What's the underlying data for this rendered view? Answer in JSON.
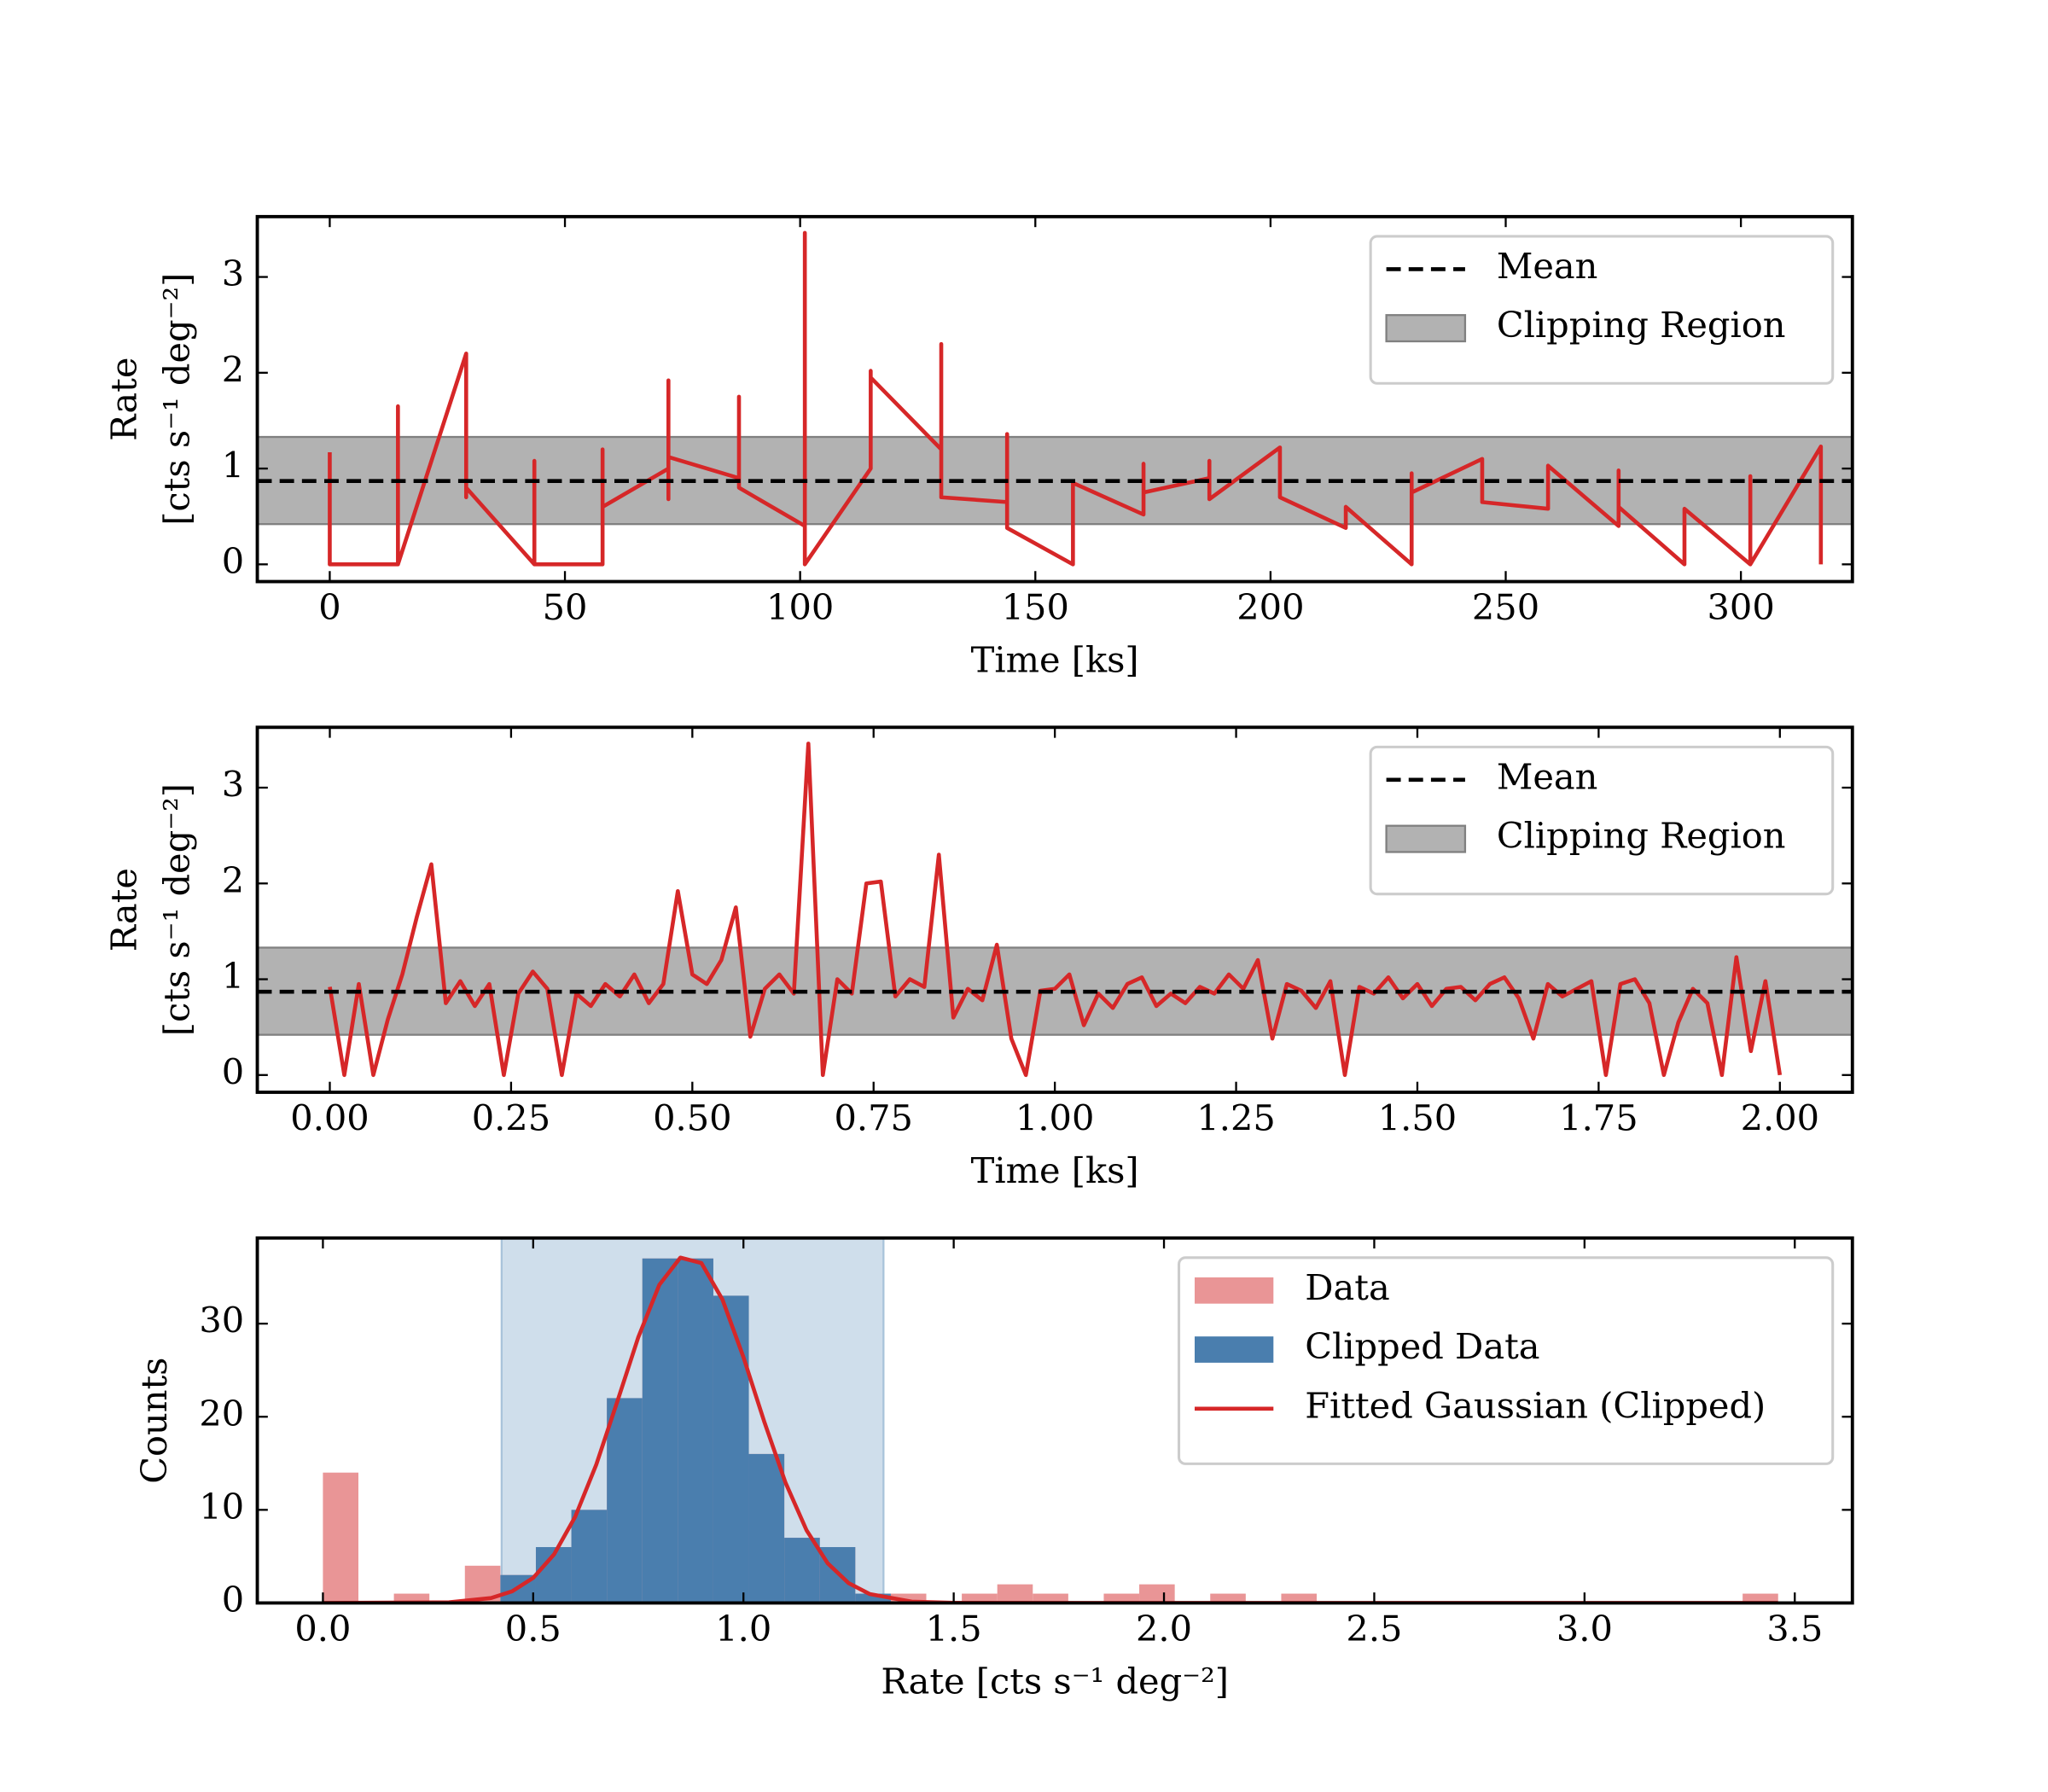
{
  "chart_data": [
    {
      "type": "line",
      "xlabel": "Time [ks]",
      "ylabel": [
        "Rate",
        "[cts s⁻¹ deg⁻²]"
      ],
      "xlim": [
        -15.4,
        323.7
      ],
      "ylim": [
        -0.18,
        3.63
      ],
      "xticks": [
        0,
        50,
        100,
        150,
        200,
        250,
        300
      ],
      "yticks": [
        0,
        1,
        2,
        3
      ],
      "color": "#d62728",
      "x": [
        0,
        0,
        14.5,
        14.5,
        14.5,
        29,
        29,
        29,
        43.5,
        43.5,
        43.5,
        58,
        58,
        58,
        72,
        72,
        72,
        72,
        87,
        87,
        87,
        101,
        101,
        101,
        115,
        115,
        115,
        130,
        130,
        130,
        144,
        144,
        144,
        158,
        158,
        173,
        173,
        173,
        187,
        187,
        187,
        202,
        202,
        216,
        216,
        230,
        230,
        230,
        245,
        245,
        259,
        259,
        274,
        274,
        274,
        288,
        288,
        302,
        302,
        302,
        317,
        317
      ],
      "values": [
        1.17,
        0,
        0,
        1.65,
        0,
        2.2,
        0.7,
        0.8,
        0,
        1.08,
        0,
        0,
        1.2,
        0.6,
        1.0,
        1.92,
        0.68,
        1.12,
        0.9,
        1.75,
        0.8,
        0.4,
        3.46,
        0,
        1.0,
        2.02,
        1.95,
        1.2,
        2.3,
        0.7,
        0.65,
        1.36,
        0.38,
        0,
        0.85,
        0.52,
        1.05,
        0.75,
        0.9,
        1.08,
        0.68,
        1.22,
        0.7,
        0.38,
        0.6,
        0,
        0.95,
        0.75,
        1.1,
        0.65,
        0.58,
        1.03,
        0.4,
        0.98,
        0.6,
        0,
        0.58,
        0,
        0.92,
        0,
        1.23,
        0
      ],
      "mean": {
        "name": "Mean",
        "value": 0.87,
        "color": "#000000"
      },
      "clip_region": {
        "name": "Clipping Region",
        "range": [
          0.42,
          1.33
        ],
        "color": "#b2b2b2"
      }
    },
    {
      "type": "line",
      "xlabel": "Time [ks]",
      "ylabel": [
        "Rate",
        "[cts s⁻¹ deg⁻²]"
      ],
      "xlim": [
        -0.1,
        2.1
      ],
      "ylim": [
        -0.18,
        3.63
      ],
      "xticks": [
        {
          "value": 0,
          "label": "0.00"
        },
        0.25,
        {
          "value": 0.5,
          "label": "0.50"
        },
        0.75,
        {
          "value": 1,
          "label": "1.00"
        },
        1.25,
        {
          "value": 1.5,
          "label": "1.50"
        },
        1.75,
        {
          "value": 2,
          "label": "2.00"
        }
      ],
      "yticks": [
        0,
        1,
        2,
        3
      ],
      "color": "#d62728",
      "x": [
        0,
        0.02,
        0.04,
        0.06,
        0.08,
        0.1,
        0.12,
        0.14,
        0.16,
        0.18,
        0.2,
        0.22,
        0.24,
        0.26,
        0.28,
        0.3,
        0.32,
        0.34,
        0.36,
        0.38,
        0.4,
        0.42,
        0.44,
        0.46,
        0.48,
        0.5,
        0.52,
        0.54,
        0.56,
        0.58,
        0.6,
        0.62,
        0.64,
        0.66,
        0.68,
        0.7,
        0.72,
        0.74,
        0.76,
        0.78,
        0.8,
        0.82,
        0.84,
        0.86,
        0.88,
        0.9,
        0.92,
        0.94,
        0.96,
        0.98,
        1.0,
        1.02,
        1.04,
        1.06,
        1.08,
        1.1,
        1.12,
        1.14,
        1.16,
        1.18,
        1.2,
        1.22,
        1.24,
        1.26,
        1.28,
        1.3,
        1.32,
        1.34,
        1.36,
        1.38,
        1.4,
        1.42,
        1.44,
        1.46,
        1.48,
        1.5,
        1.52,
        1.54,
        1.56,
        1.58,
        1.6,
        1.62,
        1.64,
        1.66,
        1.68,
        1.7,
        1.72,
        1.74,
        1.76,
        1.78,
        1.8,
        1.82,
        1.84,
        1.86,
        1.88,
        1.9,
        1.92,
        1.94,
        1.96,
        1.98,
        2.0
      ],
      "values": [
        0.92,
        0,
        0.95,
        0,
        0.58,
        1.05,
        1.65,
        2.2,
        0.75,
        0.98,
        0.72,
        0.95,
        0,
        0.85,
        1.08,
        0.9,
        0,
        0.85,
        0.72,
        0.95,
        0.82,
        1.05,
        0.75,
        0.95,
        1.92,
        1.05,
        0.95,
        1.2,
        1.75,
        0.4,
        0.9,
        1.05,
        0.85,
        3.46,
        0,
        1.0,
        0.85,
        2.0,
        2.02,
        0.82,
        1.0,
        0.92,
        2.3,
        0.6,
        0.9,
        0.78,
        1.36,
        0.38,
        0,
        0.88,
        0.9,
        1.05,
        0.52,
        0.85,
        0.7,
        0.95,
        1.02,
        0.72,
        0.85,
        0.75,
        0.92,
        0.85,
        1.05,
        0.9,
        1.2,
        0.38,
        0.95,
        0.88,
        0.7,
        0.98,
        0,
        0.92,
        0.85,
        1.02,
        0.8,
        0.95,
        0.72,
        0.9,
        0.92,
        0.78,
        0.95,
        1.02,
        0.8,
        0.38,
        0.95,
        0.82,
        0.9,
        0.98,
        0,
        0.95,
        1.0,
        0.75,
        0,
        0.55,
        0.9,
        0.75,
        0,
        1.23,
        0.25,
        0.98,
        0
      ],
      "mean": {
        "name": "Mean",
        "value": 0.87,
        "color": "#000000"
      },
      "clip_region": {
        "name": "Clipping Region",
        "range": [
          0.42,
          1.33
        ],
        "color": "#b2b2b2"
      }
    },
    {
      "type": "histogram",
      "xlabel": "Rate [cts s⁻¹ deg⁻²]",
      "ylabel": [
        "Counts"
      ],
      "xlim": [
        -0.156,
        3.637
      ],
      "ylim": [
        0,
        39.2
      ],
      "xticks": [
        {
          "value": 0,
          "label": "0.0"
        },
        0.5,
        {
          "value": 1,
          "label": "1.0"
        },
        1.5,
        {
          "value": 2,
          "label": "2.0"
        },
        2.5,
        {
          "value": 3,
          "label": "3.0"
        },
        3.5
      ],
      "yticks": [
        0,
        10,
        20,
        30
      ],
      "span": [
        0.425,
        1.333
      ],
      "span_color": "#cfdeeb",
      "series": [
        {
          "name": "Data",
          "color": "#e99596",
          "bins": [
            0,
            0.0844,
            0.1688,
            0.2532,
            0.3376,
            0.422,
            0.5064,
            0.5908,
            0.6752,
            0.7596,
            0.844,
            0.9284,
            1.0128,
            1.0972,
            1.1816,
            1.266,
            1.3504,
            1.4348,
            1.5192,
            1.6036,
            1.688,
            1.7724,
            1.8568,
            1.9412,
            2.0256,
            2.11,
            2.1944,
            2.2788,
            2.3632,
            2.4476,
            2.532,
            2.6164,
            2.7008,
            2.7852,
            2.8696,
            2.954,
            3.0384,
            3.1228,
            3.2072,
            3.2916,
            3.376,
            3.4604
          ],
          "values": [
            14,
            0,
            1,
            0,
            4,
            3,
            6,
            10,
            22,
            37,
            37,
            33,
            16,
            7,
            6,
            1,
            1,
            0,
            1,
            2,
            1,
            0,
            1,
            2,
            0,
            1,
            0,
            1,
            0,
            0,
            0,
            0,
            0,
            0,
            0,
            0,
            0,
            0,
            0,
            0,
            1
          ]
        },
        {
          "name": "Clipped Data",
          "color": "#4a7eae",
          "bins": [
            0.422,
            0.5064,
            0.5908,
            0.6752,
            0.7596,
            0.844,
            0.9284,
            1.0128,
            1.0972,
            1.1816,
            1.266,
            1.3504
          ],
          "values": [
            3,
            6,
            10,
            22,
            37,
            37,
            33,
            16,
            7,
            6,
            1
          ]
        },
        {
          "name": "Fitted Gaussian (Clipped)",
          "type": "line",
          "color": "#d62728",
          "x": [
            0,
            0.3,
            0.4,
            0.45,
            0.5,
            0.55,
            0.6,
            0.65,
            0.7,
            0.75,
            0.8,
            0.85,
            0.9,
            0.95,
            1.0,
            1.05,
            1.1,
            1.15,
            1.2,
            1.25,
            1.3,
            1.4,
            1.5,
            3.46
          ],
          "values": [
            0,
            0.07,
            0.53,
            1.25,
            2.69,
            5.24,
            9.27,
            14.86,
            21.63,
            28.55,
            34.17,
            37.09,
            36.51,
            32.6,
            26.4,
            19.4,
            12.92,
            7.81,
            4.28,
            2.13,
            0.96,
            0.14,
            0.01,
            0
          ]
        }
      ]
    }
  ]
}
